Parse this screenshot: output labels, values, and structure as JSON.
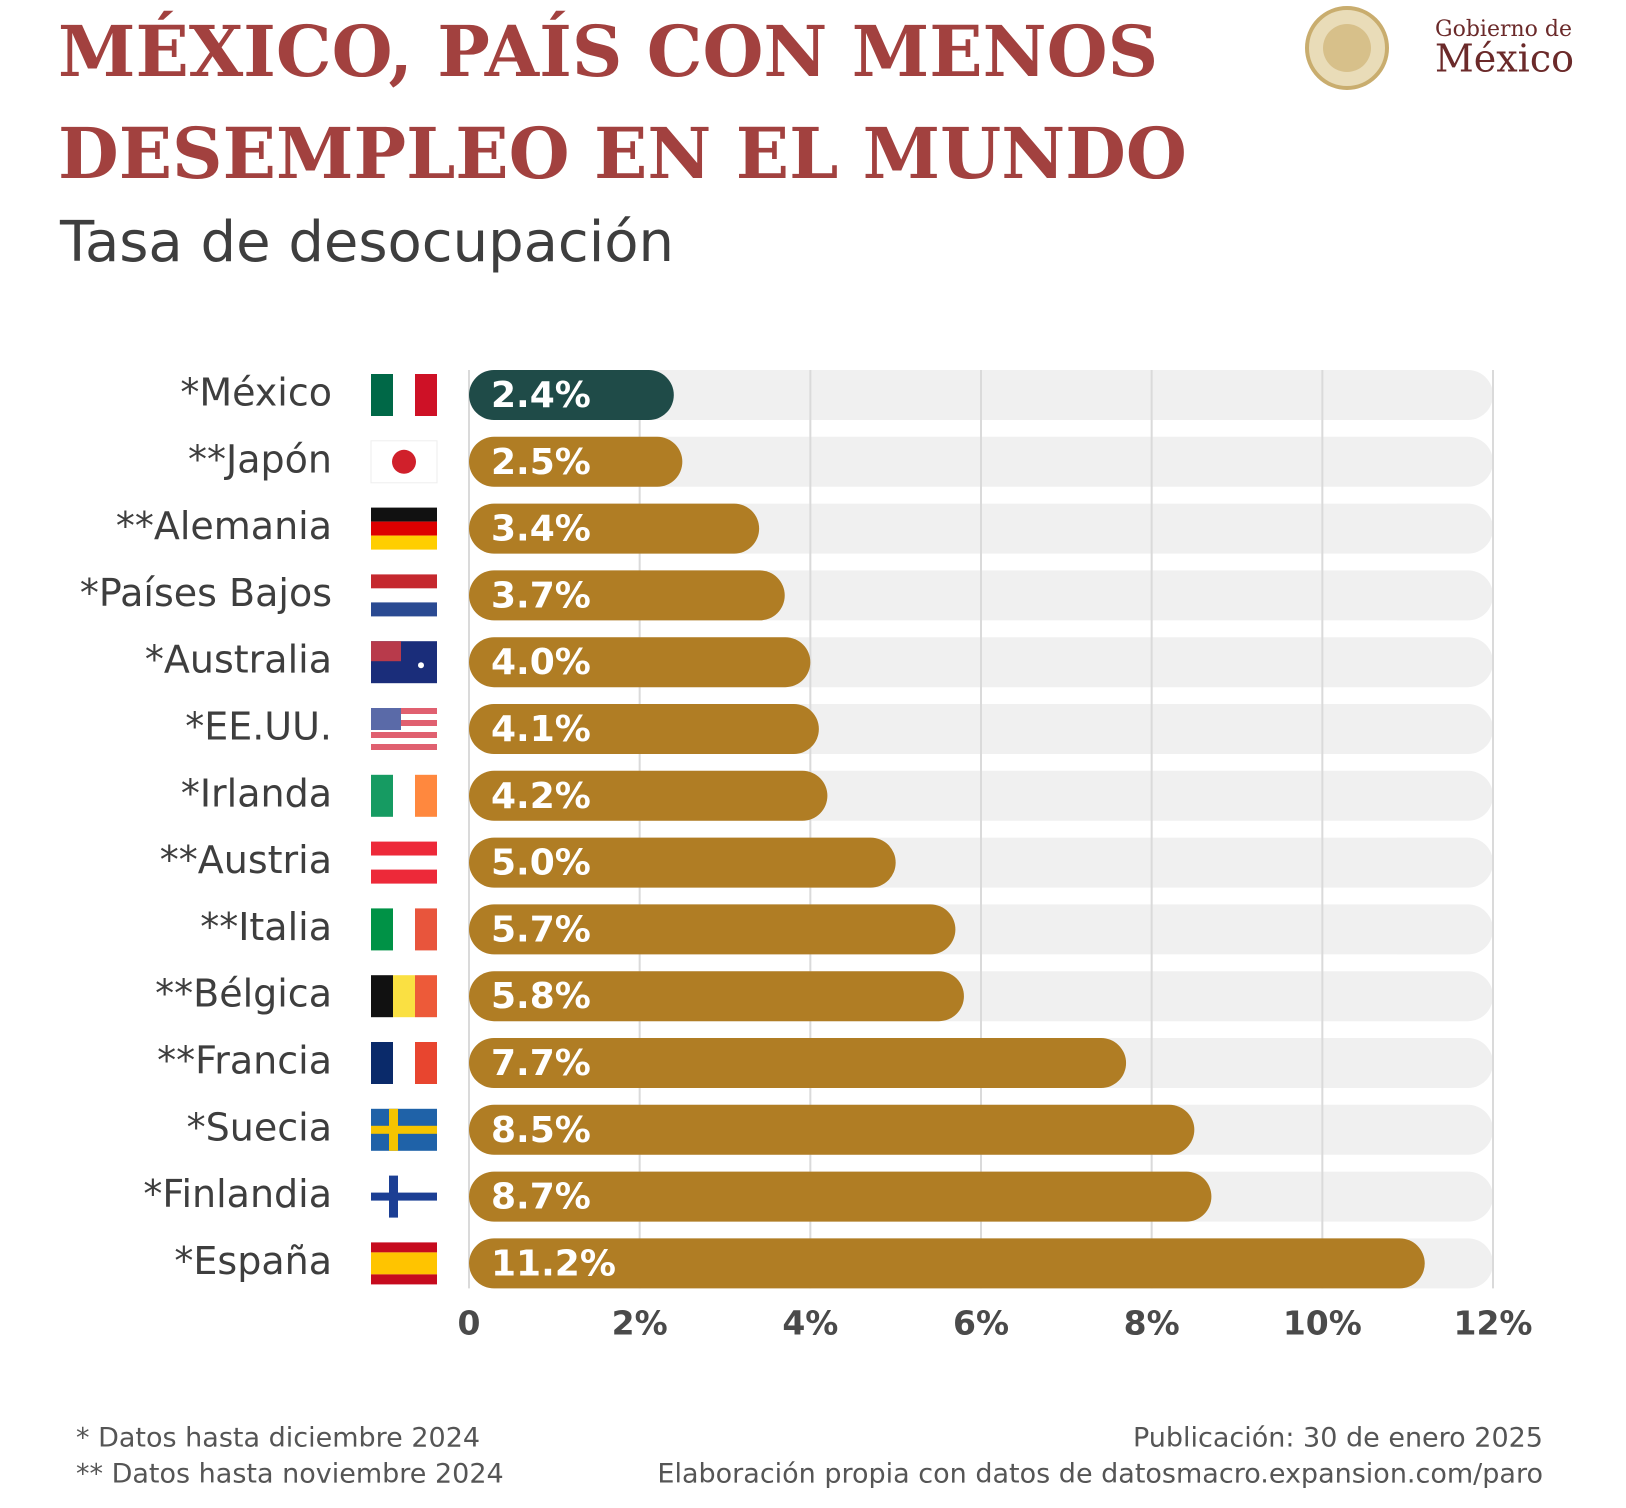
{
  "chart_data": {
    "type": "bar",
    "orientation": "horizontal",
    "title": [
      "MÉXICO, PAÍS CON MENOS",
      "DESEMPLEO EN EL MUNDO"
    ],
    "subtitle": "Tasa de desocupación",
    "categories": [
      "*México",
      "**Japón",
      "**Alemania",
      "*Países Bajos",
      "*Australia",
      "*EE.UU.",
      "*Irlanda",
      "**Austria",
      "**Italia",
      "**Bélgica",
      "**Francia",
      "*Suecia",
      "*Finlandia",
      "*España"
    ],
    "values": [
      2.4,
      2.5,
      3.4,
      3.7,
      4.0,
      4.1,
      4.2,
      5.0,
      5.7,
      5.8,
      7.7,
      8.5,
      8.7,
      11.2
    ],
    "value_labels": [
      "2.4%",
      "2.5%",
      "3.4%",
      "3.7%",
      "4.0%",
      "4.1%",
      "4.2%",
      "5.0%",
      "5.7%",
      "5.8%",
      "7.7%",
      "8.5%",
      "8.7%",
      "11.2%"
    ],
    "colors": [
      "#1f4b48",
      "#b07d24",
      "#b07d24",
      "#b07d24",
      "#b07d24",
      "#b07d24",
      "#b07d24",
      "#b07d24",
      "#b07d24",
      "#b07d24",
      "#b07d24",
      "#b07d24",
      "#b07d24",
      "#b07d24"
    ],
    "xlim": [
      0,
      12
    ],
    "xticks": [
      0,
      {
        "value": 2,
        "label": "2%"
      },
      {
        "value": 4,
        "label": "4%"
      },
      {
        "value": 6,
        "label": "6%"
      },
      {
        "value": 8,
        "label": "8%"
      },
      {
        "value": 10,
        "label": "10%"
      },
      {
        "value": 12,
        "label": "12%"
      }
    ],
    "grid": true,
    "footnotes": [
      "* Datos hasta diciembre 2024",
      "** Datos hasta noviembre 2024"
    ],
    "publication": "Publicación: 30 de enero 2025",
    "source": "Elaboración propia con datos de datosmacro.expansion.com/paro",
    "logo": [
      "Gobierno de",
      "México"
    ]
  }
}
